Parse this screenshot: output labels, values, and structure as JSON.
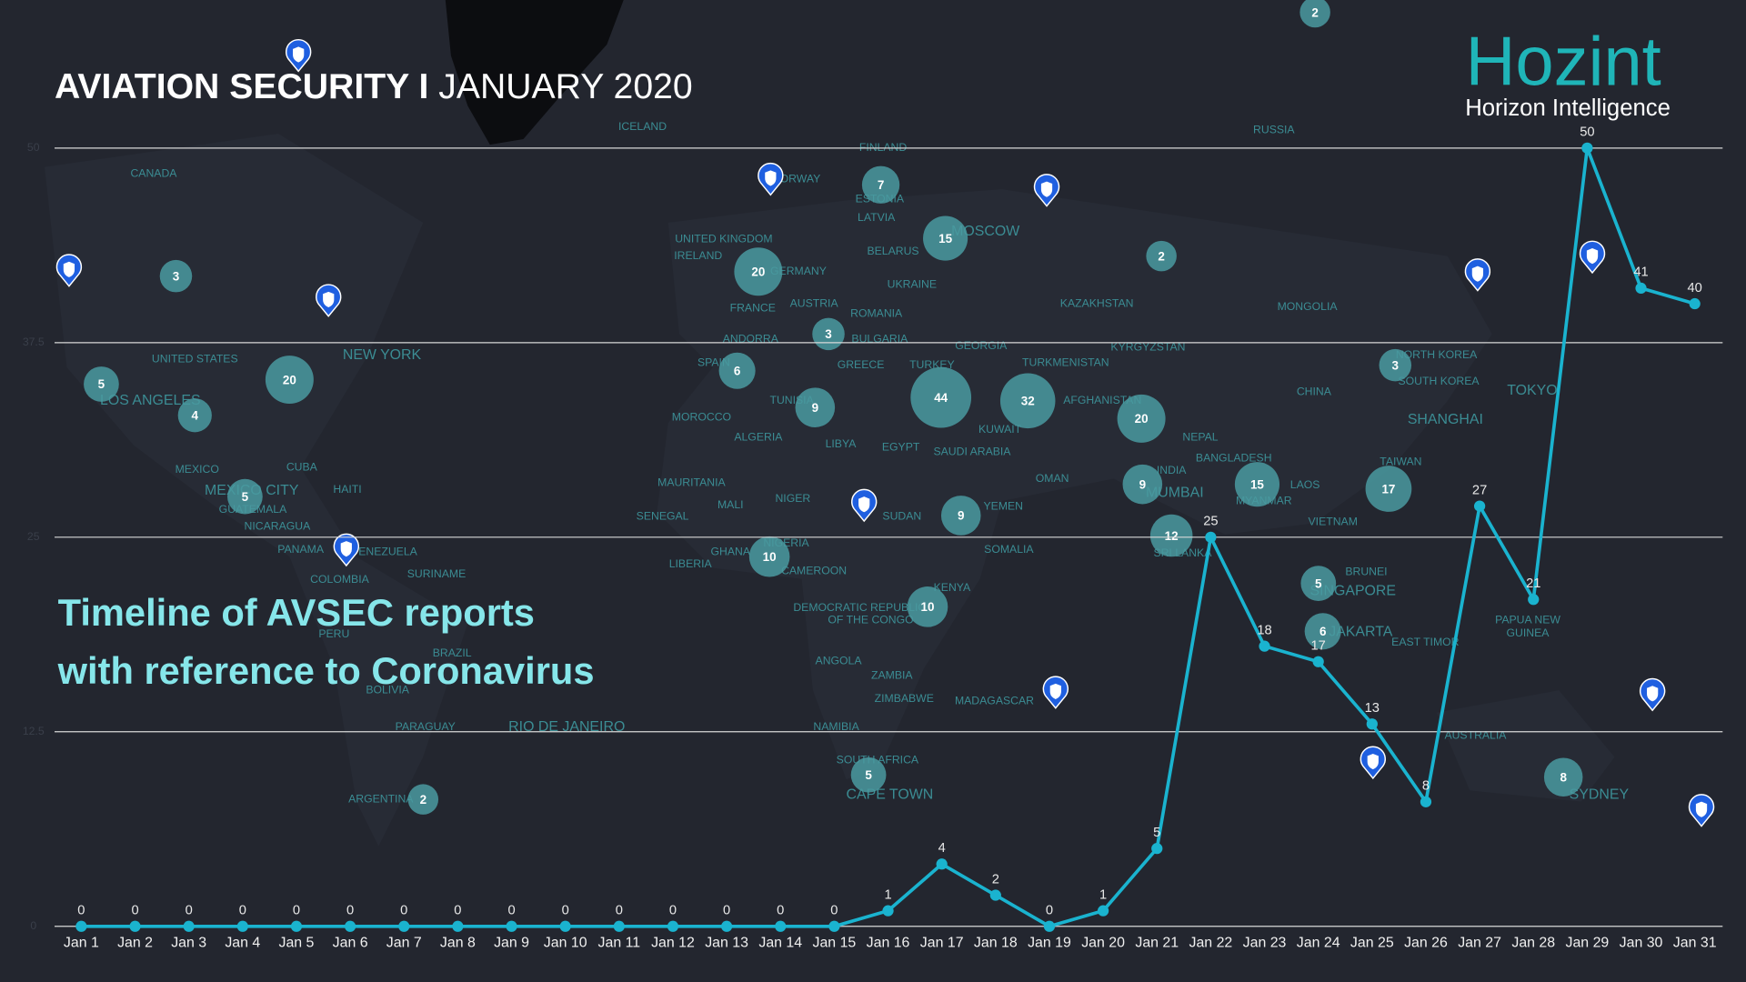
{
  "header": {
    "title_bold": "AVIATION SECURITY I",
    "title_rest": "JANUARY 2020"
  },
  "logo": {
    "name": "Hozint",
    "tagline": "Horizon Intelligence"
  },
  "subtitle": [
    "Timeline of AVSEC reports",
    "with reference to Coronavirus"
  ],
  "map": {
    "bubbles": [
      2,
      7,
      15,
      20,
      2,
      3,
      3,
      6,
      5,
      20,
      4,
      44,
      32,
      9,
      20,
      3,
      5,
      9,
      15,
      17,
      9,
      12,
      10,
      5,
      10,
      6,
      5,
      2,
      8
    ],
    "places": [
      "ICELAND",
      "RUSSIA",
      "FINLAND",
      "CANADA",
      "NORWAY",
      "ESTONIA",
      "LATVIA",
      "MOSCOW",
      "UNITED KINGDOM",
      "IRELAND",
      "GERMANY",
      "BELARUS",
      "UKRAINE",
      "KAZAKHSTAN",
      "MONGOLIA",
      "FRANCE",
      "AUSTRIA",
      "ROMANIA",
      "ANDORRA",
      "BULGARIA",
      "GEORGIA",
      "KYRGYZSTAN",
      "NORTH KOREA",
      "UNITED STATES",
      "NEW YORK",
      "SPAIN",
      "GREECE",
      "TURKEY",
      "TURKMENISTAN",
      "SOUTH KOREA",
      "TOKYO",
      "CHINA",
      "LOS ANGELES",
      "AFGHANISTAN",
      "TUNISIA",
      "SHANGHAI",
      "MOROCCO",
      "KUWAIT",
      "NEPAL",
      "ALGERIA",
      "LIBYA",
      "EGYPT",
      "SAUDI ARABIA",
      "BANGLADESH",
      "TAIWAN",
      "MEXICO",
      "CUBA",
      "INDIA",
      "OMAN",
      "LAOS",
      "MAURITANIA",
      "MUMBAI",
      "HAITI",
      "MEXICO CITY",
      "NIGER",
      "MYANMAR",
      "MALI",
      "YEMEN",
      "SUDAN",
      "GUATEMALA",
      "SENEGAL",
      "VIETNAM",
      "NICARAGUA",
      "NIGERIA",
      "SOMALIA",
      "PANAMA",
      "VENEZUELA",
      "GHANA",
      "SRI LANKA",
      "LIBERIA",
      "BRUNEI",
      "SURINAME",
      "CAMEROON",
      "COLOMBIA",
      "KENYA",
      "SINGAPORE",
      "DEMOCRATIC REPUBLIC",
      "OF THE CONGO",
      "PAPUA NEW",
      "GUINEA",
      "JAKARTA",
      "EAST TIMOR",
      "PERU",
      "BRAZIL",
      "ANGOLA",
      "ZAMBIA",
      "BOLIVIA",
      "ZIMBABWE",
      "MADAGASCAR",
      "PARAGUAY",
      "RIO DE JANEIRO",
      "NAMIBIA",
      "AUSTRALIA",
      "SOUTH AFRICA",
      "CAPE TOWN",
      "ARGENTINA",
      "SYDNEY"
    ]
  },
  "chart_data": {
    "type": "line",
    "color": "#1ab3cf",
    "categories": [
      "Jan 1",
      "Jan 2",
      "Jan 3",
      "Jan 4",
      "Jan 5",
      "Jan 6",
      "Jan 7",
      "Jan 8",
      "Jan 9",
      "Jan 10",
      "Jan 11",
      "Jan 12",
      "Jan 13",
      "Jan 14",
      "Jan 15",
      "Jan 16",
      "Jan 17",
      "Jan 18",
      "Jan 19",
      "Jan 20",
      "Jan 21",
      "Jan 22",
      "Jan 23",
      "Jan 24",
      "Jan 25",
      "Jan 26",
      "Jan 27",
      "Jan 28",
      "Jan 29",
      "Jan 30",
      "Jan 31"
    ],
    "values": [
      0,
      0,
      0,
      0,
      0,
      0,
      0,
      0,
      0,
      0,
      0,
      0,
      0,
      0,
      0,
      1,
      4,
      2,
      0,
      1,
      5,
      25,
      18,
      17,
      13,
      8,
      27,
      21,
      50,
      41,
      40
    ],
    "ylim": [
      0,
      50
    ],
    "yticks": [
      0,
      12.5,
      25,
      37.5,
      50
    ],
    "grid": true
  }
}
